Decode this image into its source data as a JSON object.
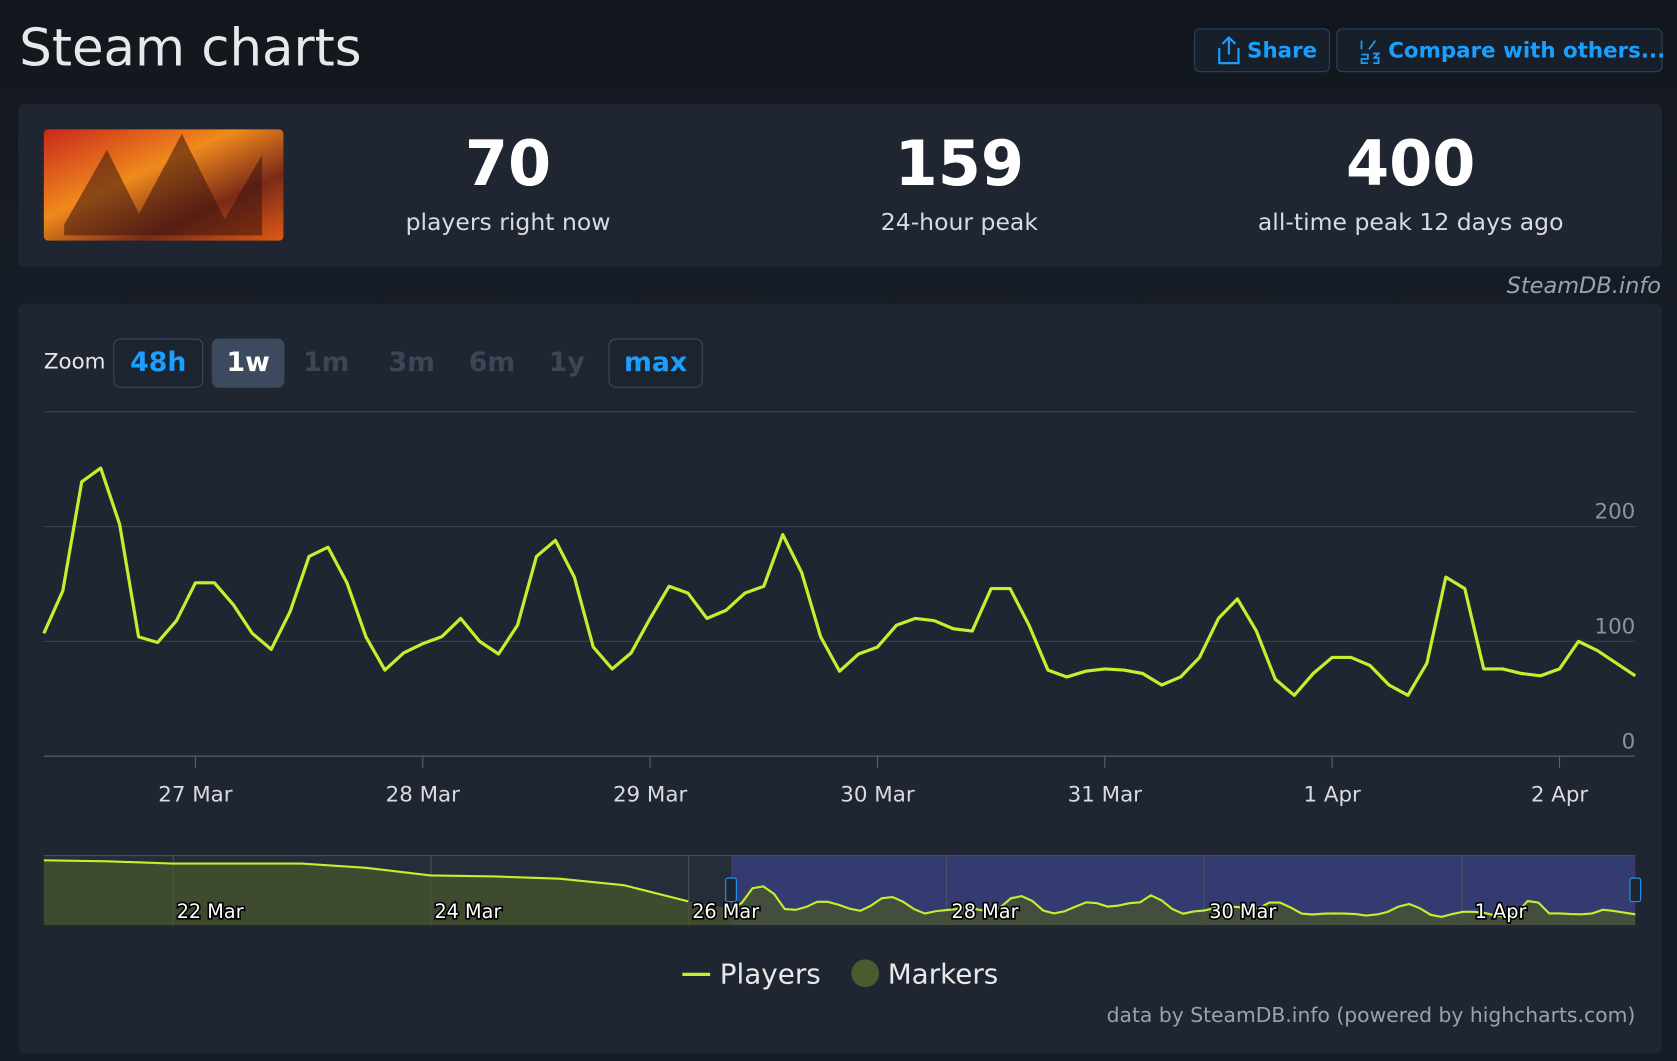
{
  "header": {
    "title": "Steam charts",
    "buttons": [
      "Share",
      "Compare with others..."
    ]
  },
  "stats": [
    {
      "value": 70,
      "label": "players right now"
    },
    {
      "value": 159,
      "label": "24-hour peak"
    },
    {
      "value": 400,
      "label": "all-time peak 12 days ago"
    }
  ],
  "source": "SteamDB.info",
  "zoom": {
    "label": "Zoom",
    "options": [
      "48h",
      "1w",
      "1m",
      "3m",
      "6m",
      "1y",
      "max"
    ],
    "enabled": [
      true,
      true,
      false,
      false,
      false,
      false,
      true
    ],
    "active": "1w"
  },
  "chart_data": {
    "type": "line",
    "categories": [
      null,
      null,
      null,
      null,
      null,
      null,
      null,
      null,
      "27 Mar",
      null,
      null,
      null,
      null,
      null,
      null,
      null,
      null,
      null,
      null,
      null,
      "28 Mar",
      null,
      null,
      null,
      null,
      null,
      null,
      null,
      null,
      null,
      null,
      null,
      "29 Mar",
      null,
      null,
      null,
      null,
      null,
      null,
      null,
      null,
      null,
      null,
      null,
      "30 Mar",
      null,
      null,
      null,
      null,
      null,
      null,
      null,
      null,
      null,
      null,
      null,
      "31 Mar",
      null,
      null,
      null,
      null,
      null,
      null,
      null,
      null,
      null,
      null,
      null,
      "1 Apr",
      null,
      null,
      null,
      null,
      null,
      null,
      null,
      null,
      null,
      null,
      null,
      "2 Apr",
      null,
      null,
      null,
      null
    ],
    "series": [
      {
        "name": "Players",
        "color": "#c2f02e",
        "values": [
          107,
          144,
          239,
          251,
          202,
          104,
          99,
          118,
          151,
          151,
          132,
          107,
          93,
          126,
          174,
          182,
          151,
          104,
          75,
          90,
          98,
          104,
          120,
          100,
          89,
          114,
          174,
          188,
          156,
          95,
          76,
          90,
          120,
          148,
          142,
          120,
          127,
          142,
          148,
          193,
          160,
          104,
          74,
          89,
          95,
          114,
          120,
          118,
          111,
          109,
          146,
          146,
          114,
          75,
          69,
          74,
          76,
          75,
          72,
          62,
          69,
          86,
          120,
          137,
          109,
          67,
          53,
          72,
          86,
          86,
          79,
          62,
          53,
          81,
          156,
          146,
          76,
          76,
          72,
          70,
          76,
          100,
          92,
          81,
          70
        ]
      }
    ],
    "ylim": [
      0,
      300
    ],
    "yticks": [
      0,
      100,
      200
    ],
    "grid": true,
    "markers_legend": {
      "name": "Markers",
      "color": "#4b5a2f"
    },
    "navigator": {
      "categories": [
        null,
        null,
        "22 Mar",
        null,
        null,
        null,
        "24 Mar",
        null,
        null,
        null,
        "26 Mar"
      ],
      "values": [
        420,
        413,
        399,
        399,
        399,
        371,
        322,
        315,
        301,
        259,
        154
      ],
      "ylim": [
        0,
        450
      ],
      "later_labels": [
        "28 Mar",
        "30 Mar",
        "1 Apr"
      ]
    }
  },
  "credits": "data by SteamDB.info (powered by highcharts.com)"
}
